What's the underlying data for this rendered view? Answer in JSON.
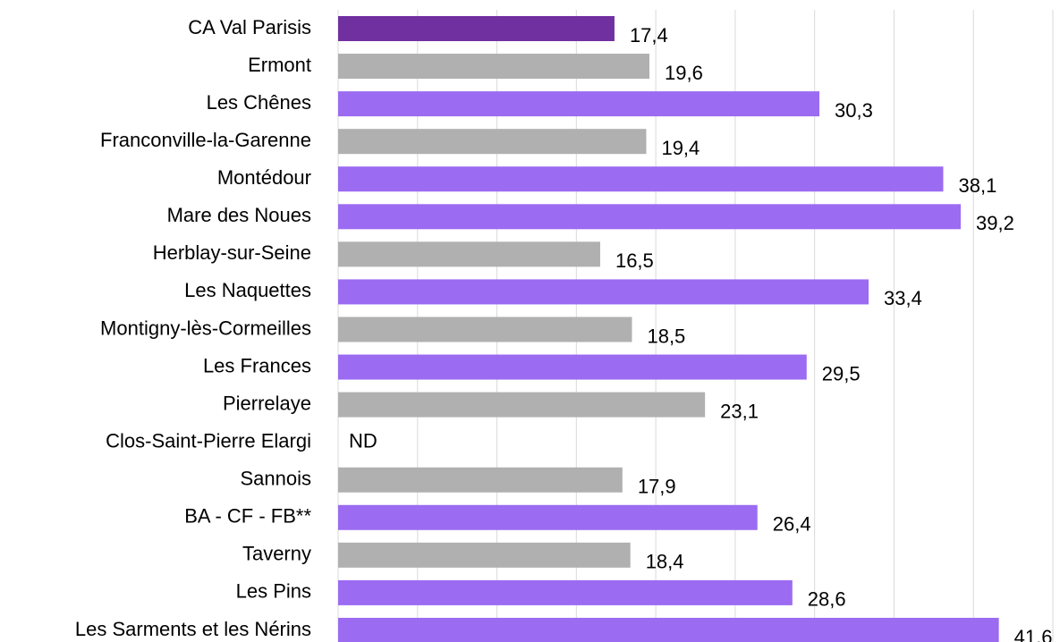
{
  "chart_data": {
    "type": "hbar",
    "categories": [
      "CA Val Parisis",
      "Ermont",
      "Les Chênes",
      "Franconville-la-Garenne",
      "Montédour",
      "Mare des Noues",
      "Herblay-sur-Seine",
      "Les Naquettes",
      "Montigny-lès-Cormeilles",
      "Les Frances",
      "Pierrelaye",
      "Clos-Saint-Pierre Elargi",
      "Sannois",
      "BA - CF - FB**",
      "Taverny",
      "Les Pins",
      "Les Sarments et les Nérins"
    ],
    "values": [
      17.4,
      19.6,
      30.3,
      19.4,
      38.1,
      39.2,
      16.5,
      33.4,
      18.5,
      29.5,
      23.1,
      null,
      17.9,
      26.4,
      18.4,
      28.6,
      41.6
    ],
    "value_labels": [
      "17,4",
      "19,6",
      "30,3",
      "19,4",
      "38,1",
      "39,2",
      "16,5",
      "33,4",
      "18,5",
      "29,5",
      "23,1",
      "ND",
      "17,9",
      "26,4",
      "18,4",
      "28,6",
      "41,6"
    ],
    "colors": [
      "#7030a0",
      "#b0b0b0",
      "#9b6bf2",
      "#b0b0b0",
      "#9b6bf2",
      "#9b6bf2",
      "#b0b0b0",
      "#9b6bf2",
      "#b0b0b0",
      "#9b6bf2",
      "#b0b0b0",
      "#b0b0b0",
      "#b0b0b0",
      "#9b6bf2",
      "#b0b0b0",
      "#9b6bf2",
      "#9b6bf2"
    ],
    "xlim": [
      0,
      45
    ],
    "xticks": [
      0,
      5,
      10,
      15,
      20,
      25,
      30,
      35,
      40,
      45
    ],
    "grid": true
  }
}
